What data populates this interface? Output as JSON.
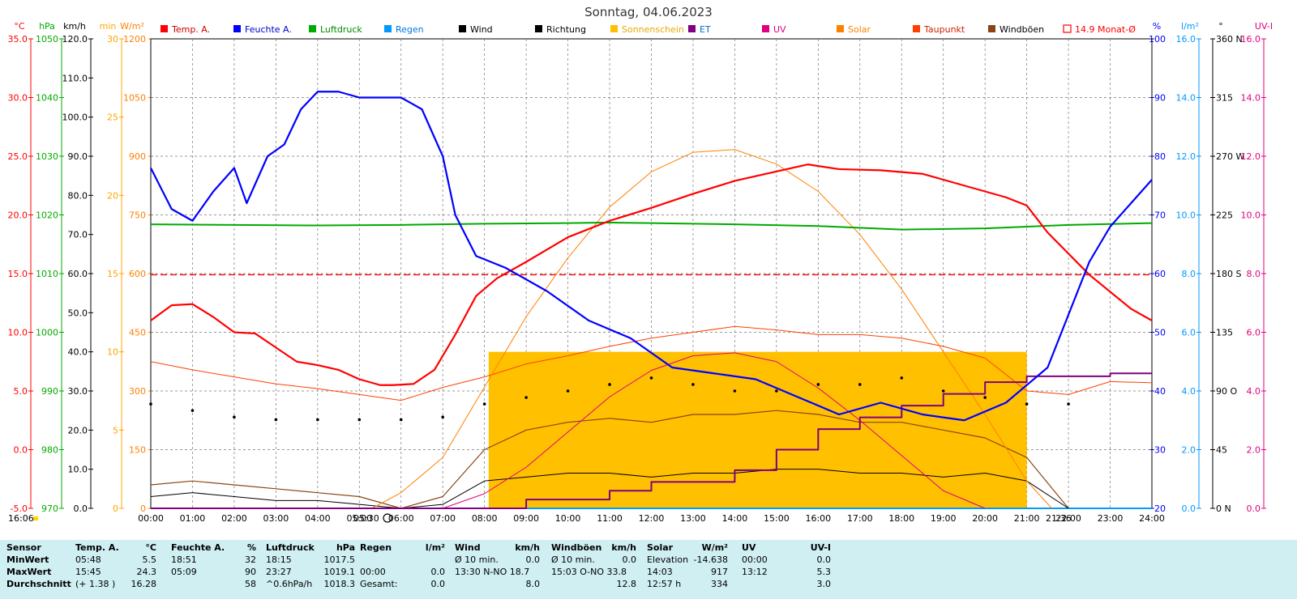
{
  "title": "Sonntag, 04.06.2023",
  "colors": {
    "temp": "#ff0000",
    "humidity": "#0000ff",
    "pressure": "#00aa00",
    "rain": "#0099ff",
    "wind": "#000000",
    "direction": "#000000",
    "sunshine": "#ffc000",
    "et": "#800080",
    "uv": "#e0007f",
    "solar": "#ff8000",
    "dewpoint": "#ff4000",
    "gust": "#8b4513",
    "monthly": "#ff0000",
    "stats_bg": "#cfeff3"
  },
  "legend": [
    {
      "label": "Temp. A.",
      "color": "#ff0000",
      "label_color": "#cc0000",
      "style": "box"
    },
    {
      "label": "Feuchte A.",
      "color": "#0000ff",
      "label_color": "#0000cc",
      "style": "box"
    },
    {
      "label": "Luftdruck",
      "color": "#00aa00",
      "label_color": "#008800",
      "style": "box"
    },
    {
      "label": "Regen",
      "color": "#0099ff",
      "label_color": "#0077dd",
      "style": "box"
    },
    {
      "label": "Wind",
      "color": "#000000",
      "label_color": "#000000",
      "style": "box"
    },
    {
      "label": "Richtung",
      "color": "#000000",
      "label_color": "#000000",
      "style": "box"
    },
    {
      "label": "Sonnenschein",
      "color": "#ffc000",
      "label_color": "#e6a800",
      "style": "box"
    },
    {
      "label": "ET",
      "color": "#800080",
      "label_color": "#0070c0",
      "style": "box"
    },
    {
      "label": "UV",
      "color": "#e0007f",
      "label_color": "#e0007f",
      "style": "box"
    },
    {
      "label": "Solar",
      "color": "#ff8000",
      "label_color": "#ff8000",
      "style": "box"
    },
    {
      "label": "Taupunkt",
      "color": "#ff4000",
      "label_color": "#cc2200",
      "style": "box"
    },
    {
      "label": "Windböen",
      "color": "#8b4513",
      "label_color": "#000000",
      "style": "box"
    },
    {
      "label": "14.9 Monat-Ø",
      "color": "#ff0000",
      "label_color": "#ff0000",
      "style": "outline"
    }
  ],
  "axes": {
    "temp": {
      "unit": "°C",
      "ticks": [
        "35.0",
        "30.0",
        "25.0",
        "20.0",
        "15.0",
        "10.0",
        "5.0",
        "0.0",
        "-5.0"
      ],
      "range": [
        -5,
        35
      ]
    },
    "pressure": {
      "unit": "hPa",
      "ticks": [
        "1050",
        "1040",
        "1030",
        "1020",
        "1010",
        "1000",
        "990",
        "980",
        "970"
      ],
      "range": [
        970,
        1050
      ]
    },
    "wind": {
      "unit": "km/h",
      "ticks": [
        "120.0",
        "110.0",
        "100.0",
        "90.0",
        "80.0",
        "70.0",
        "60.0",
        "50.0",
        "40.0",
        "30.0",
        "20.0",
        "10.0",
        "0.0"
      ],
      "range": [
        0,
        120
      ]
    },
    "sunshine_min": {
      "unit": "min",
      "ticks": [
        "30",
        "25",
        "20",
        "15",
        "10",
        "5",
        "0"
      ],
      "range": [
        0,
        30
      ]
    },
    "solar": {
      "unit": "W/m²",
      "ticks": [
        "1200",
        "1050",
        "900",
        "750",
        "600",
        "450",
        "300",
        "150",
        "0"
      ],
      "range": [
        0,
        1200
      ]
    },
    "humidity": {
      "unit": "%",
      "ticks": [
        "100",
        "90",
        "80",
        "70",
        "60",
        "50",
        "40",
        "30",
        "20"
      ],
      "range": [
        20,
        100
      ]
    },
    "rain": {
      "unit": "l/m²",
      "ticks": [
        "16.0",
        "14.0",
        "12.0",
        "10.0",
        "8.0",
        "6.0",
        "4.0",
        "2.0",
        "0.0"
      ],
      "range": [
        0,
        16
      ]
    },
    "direction": {
      "unit": "°",
      "ticks": [
        "360 N",
        "315",
        "270 W",
        "225",
        "180 S",
        "135",
        "90 O",
        "45",
        "0 N"
      ],
      "range": [
        0,
        360
      ]
    },
    "uv": {
      "unit": "UV-I",
      "ticks": [
        "16.0",
        "14.0",
        "12.0",
        "10.0",
        "8.0",
        "6.0",
        "4.0",
        "2.0",
        "0.0"
      ],
      "range": [
        0,
        16
      ]
    }
  },
  "x_ticks": [
    "00:00",
    "01:00",
    "02:00",
    "03:00",
    "04:00",
    "05:00",
    "06:00",
    "07:00",
    "08:00",
    "09:00",
    "10:00",
    "11:00",
    "12:00",
    "13:00",
    "14:00",
    "15:00",
    "16:00",
    "17:00",
    "18:00",
    "19:00",
    "20:00",
    "21:00",
    "22:00",
    "23:00",
    "24:00"
  ],
  "annotations": {
    "now": "16:06",
    "sunrise": "05:30",
    "sunset": "21:36"
  },
  "chart_data": {
    "type": "line",
    "title": "Sonntag, 04.06.2023",
    "x_unit": "hours",
    "xlim": [
      0,
      24
    ],
    "series": [
      {
        "name": "Temp. A.",
        "axis": "temp",
        "x": [
          0,
          0.5,
          1,
          1.5,
          2,
          2.5,
          3,
          3.5,
          4,
          4.5,
          5,
          5.5,
          5.8,
          6.3,
          6.8,
          7.3,
          7.8,
          8.3,
          9,
          10,
          11,
          12,
          13,
          14,
          15,
          15.75,
          16.5,
          17.5,
          18.5,
          19.5,
          20.5,
          21,
          21.5,
          22.5,
          23.5,
          24
        ],
        "y": [
          11.0,
          12.3,
          12.4,
          11.3,
          10.0,
          9.9,
          8.7,
          7.5,
          7.2,
          6.8,
          6.0,
          5.5,
          5.5,
          5.6,
          6.8,
          9.8,
          13.1,
          14.6,
          16.0,
          18.1,
          19.5,
          20.6,
          21.8,
          22.9,
          23.7,
          24.3,
          23.9,
          23.8,
          23.5,
          22.5,
          21.5,
          20.8,
          18.5,
          14.9,
          12.0,
          11.0
        ]
      },
      {
        "name": "Feuchte A.",
        "axis": "humidity",
        "x": [
          0,
          0.5,
          1,
          1.5,
          2,
          2.3,
          2.8,
          3.2,
          3.6,
          4,
          4.5,
          5,
          5.5,
          6,
          6.5,
          7,
          7.3,
          7.8,
          8.5,
          9.5,
          10.5,
          11.5,
          12.5,
          13.5,
          14.5,
          15.5,
          16.5,
          17.5,
          18.5,
          19.5,
          20.5,
          21.5,
          22.5,
          23,
          23.5,
          24
        ],
        "y": [
          78,
          71,
          69,
          74,
          78,
          72,
          80,
          82,
          88,
          91,
          91,
          90,
          90,
          90,
          88,
          80,
          70,
          63,
          61,
          57,
          52,
          49,
          44,
          43,
          42,
          39,
          36,
          38,
          36,
          35,
          38,
          44,
          62,
          68,
          72,
          76
        ]
      },
      {
        "name": "Luftdruck",
        "axis": "pressure",
        "x": [
          0,
          2,
          4,
          6,
          8,
          10,
          11,
          12,
          14,
          16,
          18,
          20,
          22,
          24
        ],
        "y": [
          1018.4,
          1018.3,
          1018.2,
          1018.3,
          1018.5,
          1018.6,
          1018.7,
          1018.6,
          1018.4,
          1018.1,
          1017.5,
          1017.7,
          1018.3,
          1018.6
        ]
      },
      {
        "name": "Solar",
        "axis": "solar",
        "x": [
          5.3,
          6,
          7,
          8,
          9,
          10,
          11,
          12,
          13,
          14,
          15,
          16,
          17,
          18,
          19,
          20,
          21,
          21.6
        ],
        "y": [
          0,
          40,
          130,
          310,
          490,
          640,
          770,
          860,
          910,
          917,
          880,
          810,
          700,
          560,
          400,
          240,
          70,
          0
        ]
      },
      {
        "name": "Taupunkt",
        "axis": "temp",
        "x": [
          0,
          1,
          2,
          3,
          4,
          5,
          6,
          7,
          8,
          9,
          10,
          11,
          12,
          13,
          14,
          15,
          16,
          17,
          18,
          19,
          20,
          21,
          22,
          23,
          24
        ],
        "y": [
          7.5,
          6.8,
          6.2,
          5.6,
          5.2,
          4.7,
          4.2,
          5.3,
          6.2,
          7.3,
          8.0,
          8.8,
          9.5,
          10.0,
          10.5,
          10.2,
          9.8,
          9.8,
          9.5,
          8.8,
          7.8,
          5.0,
          4.7,
          5.8,
          5.7
        ]
      },
      {
        "name": "UV",
        "axis": "uv",
        "x": [
          7,
          8,
          9,
          10,
          11,
          12,
          13,
          14,
          15,
          16,
          17,
          18,
          19,
          20
        ],
        "y": [
          0,
          0.5,
          1.4,
          2.6,
          3.8,
          4.7,
          5.2,
          5.3,
          5.0,
          4.1,
          3.0,
          1.8,
          0.6,
          0
        ]
      },
      {
        "name": "ET",
        "axis": "rain",
        "x": [
          0,
          8,
          9,
          11,
          12,
          14,
          15,
          16,
          17,
          18,
          19,
          20,
          21,
          23,
          24
        ],
        "y": [
          0,
          0,
          0.3,
          0.6,
          0.9,
          1.3,
          2.0,
          2.7,
          3.1,
          3.5,
          3.9,
          4.3,
          4.5,
          4.6,
          4.6
        ]
      },
      {
        "name": "Regen",
        "axis": "rain",
        "x": [
          0,
          24
        ],
        "y": [
          0,
          0
        ]
      },
      {
        "name": "Wind",
        "axis": "wind",
        "x": [
          0,
          1,
          2,
          3,
          4,
          5,
          6,
          7,
          8,
          9,
          10,
          11,
          12,
          13,
          14,
          15,
          16,
          17,
          18,
          19,
          20,
          21,
          22
        ],
        "y": [
          3,
          4,
          3,
          2,
          2,
          1,
          0,
          1,
          7,
          8,
          9,
          9,
          8,
          9,
          9,
          10,
          10,
          9,
          9,
          8,
          9,
          7,
          0
        ]
      },
      {
        "name": "Windböen",
        "axis": "wind",
        "x": [
          0,
          1,
          2,
          3,
          4,
          5,
          6,
          7,
          8,
          9,
          10,
          11,
          12,
          13,
          14,
          15,
          16,
          17,
          18,
          19,
          20,
          21,
          22
        ],
        "y": [
          6,
          7,
          6,
          5,
          4,
          3,
          0,
          3,
          15,
          20,
          22,
          23,
          22,
          24,
          24,
          25,
          24,
          22,
          22,
          20,
          18,
          13,
          0
        ]
      },
      {
        "name": "Richtung",
        "axis": "direction",
        "style": "dots",
        "x": [
          0,
          1,
          2,
          3,
          4,
          5,
          6,
          7,
          8,
          9,
          10,
          11,
          12,
          13,
          14,
          15,
          16,
          17,
          18,
          19,
          20,
          21,
          22
        ],
        "y": [
          80,
          75,
          70,
          68,
          68,
          68,
          68,
          70,
          80,
          85,
          90,
          95,
          100,
          95,
          90,
          90,
          95,
          95,
          100,
          90,
          85,
          80,
          80
        ]
      },
      {
        "name": "Sonnenschein",
        "axis": "sunshine_min",
        "style": "bars",
        "x": [
          8.1,
          21
        ],
        "y": [
          10,
          10
        ]
      },
      {
        "name": "14.9 Monat-Ø",
        "axis": "temp",
        "style": "dashed",
        "x": [
          0,
          24
        ],
        "y": [
          14.9,
          14.9
        ]
      }
    ]
  },
  "stats": {
    "row_labels": [
      "Sensor",
      "MinWert",
      "MaxWert",
      "Durchschnitt"
    ],
    "groups": [
      {
        "header": "Temp. A.",
        "unit": "°C",
        "rows": [
          [
            "05:48",
            "5.5"
          ],
          [
            "15:45",
            "24.3"
          ],
          [
            "(+ 1.38 )",
            "16.28"
          ]
        ]
      },
      {
        "header": "Feuchte A.",
        "unit": "%",
        "rows": [
          [
            "18:51",
            "32"
          ],
          [
            "05:09",
            "90"
          ],
          [
            "",
            "58"
          ]
        ]
      },
      {
        "header": "Luftdruck",
        "unit": "hPa",
        "rows": [
          [
            "18:15",
            "1017.5"
          ],
          [
            "23:27",
            "1019.1"
          ],
          [
            "^0.6hPa/h",
            "1018.3"
          ]
        ]
      },
      {
        "header": "Regen",
        "unit": "l/m²",
        "rows": [
          [
            "",
            ""
          ],
          [
            "00:00",
            "0.0"
          ],
          [
            "Gesamt:",
            "0.0"
          ]
        ]
      },
      {
        "header": "Wind",
        "unit": "km/h",
        "rows": [
          [
            "Ø 10 min.",
            "0.0"
          ],
          [
            "13:30   N-NO 18.7",
            ""
          ],
          [
            "",
            "8.0"
          ]
        ]
      },
      {
        "header": "Windböen",
        "unit": "km/h",
        "rows": [
          [
            "Ø 10 min.",
            "0.0"
          ],
          [
            "15:03   O-NO 33.8",
            ""
          ],
          [
            "",
            "12.8"
          ]
        ]
      },
      {
        "header": "Solar",
        "unit": "W/m²",
        "rows": [
          [
            "Elevation",
            "-14.638"
          ],
          [
            "14:03",
            "917"
          ],
          [
            "12:57 h",
            "334"
          ]
        ]
      },
      {
        "header": "UV",
        "unit": "UV-I",
        "rows": [
          [
            "00:00",
            "0.0"
          ],
          [
            "13:12",
            "5.3"
          ],
          [
            "",
            "3.0"
          ]
        ]
      }
    ]
  }
}
